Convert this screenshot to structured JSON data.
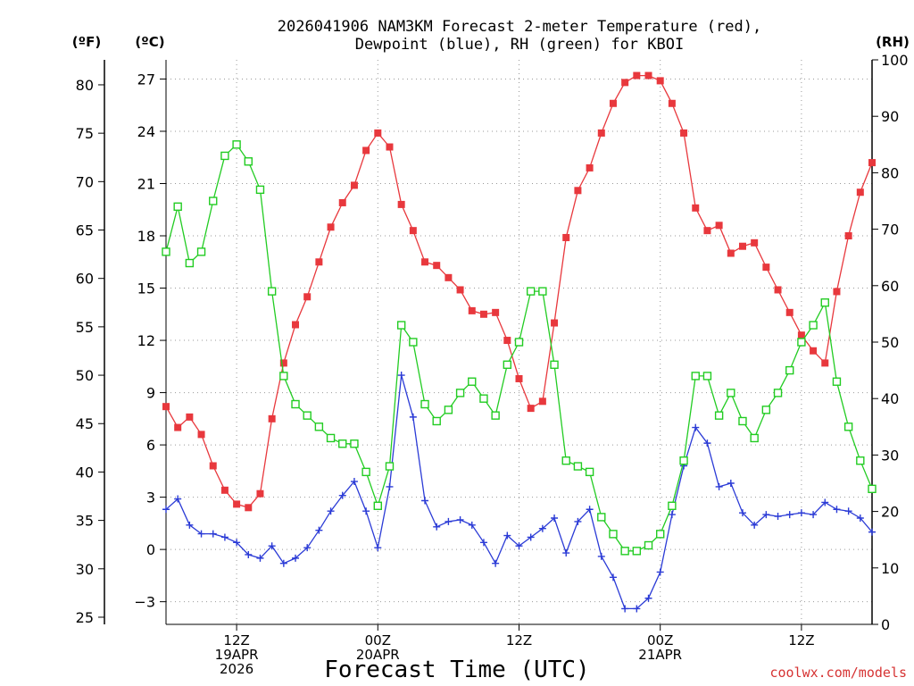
{
  "chart_data": {
    "type": "line",
    "title_line1": "2026041906 NAM3KM Forecast 2-meter Temperature (red),",
    "title_line2": "Dewpoint (blue), RH (green) for KBOI",
    "unit_f": "(ºF)",
    "unit_c": "(ºC)",
    "unit_rh": "(RH)",
    "xlabel": "Forecast Time (UTC)",
    "credit": "coolwx.com/models",
    "f_ticks": [
      "25",
      "30",
      "35",
      "40",
      "45",
      "50",
      "55",
      "60",
      "65",
      "70",
      "75",
      "80"
    ],
    "f_values": [
      25,
      30,
      35,
      40,
      45,
      50,
      55,
      60,
      65,
      70,
      75,
      80
    ],
    "c_ticks": [
      "−3",
      "0",
      "3",
      "6",
      "9",
      "12",
      "15",
      "18",
      "21",
      "24",
      "27"
    ],
    "c_values": [
      -3,
      0,
      3,
      6,
      9,
      12,
      15,
      18,
      21,
      24,
      27
    ],
    "rh_ticks": [
      "0",
      "10",
      "20",
      "30",
      "40",
      "50",
      "60",
      "70",
      "80",
      "90",
      "100"
    ],
    "rh_values": [
      0,
      10,
      20,
      30,
      40,
      50,
      60,
      70,
      80,
      90,
      100
    ],
    "ylim_c": [
      -4.3,
      28.1
    ],
    "ylim_rh": [
      0,
      100
    ],
    "xlim_hours": [
      6,
      66
    ],
    "x_ticks": [
      {
        "hour": 12,
        "lines": [
          "12Z",
          "19APR",
          "2026"
        ]
      },
      {
        "hour": 24,
        "lines": [
          "00Z",
          "20APR"
        ]
      },
      {
        "hour": 36,
        "lines": [
          "12Z"
        ]
      },
      {
        "hour": 48,
        "lines": [
          "00Z",
          "21APR"
        ]
      },
      {
        "hour": 60,
        "lines": [
          "12Z"
        ]
      }
    ],
    "hours": [
      6,
      7,
      8,
      9,
      10,
      11,
      12,
      13,
      14,
      15,
      16,
      17,
      18,
      19,
      20,
      21,
      22,
      23,
      24,
      25,
      26,
      27,
      28,
      29,
      30,
      31,
      32,
      33,
      34,
      35,
      36,
      37,
      38,
      39,
      40,
      41,
      42,
      43,
      44,
      45,
      46,
      47,
      48,
      49,
      50,
      51,
      52,
      53,
      54,
      55,
      56,
      57,
      58,
      59,
      60,
      61,
      62,
      63,
      64,
      65,
      66
    ],
    "series": [
      {
        "name": "2-meter Temperature",
        "unit": "C",
        "color": "#e8383d",
        "marker": "filled-square",
        "values": [
          8.2,
          7.0,
          7.6,
          6.6,
          4.8,
          3.4,
          2.6,
          2.4,
          3.2,
          7.5,
          10.7,
          12.9,
          14.5,
          16.5,
          18.5,
          19.9,
          20.9,
          22.9,
          23.9,
          23.1,
          19.8,
          18.3,
          16.5,
          16.3,
          15.6,
          14.9,
          13.7,
          13.5,
          13.6,
          12.0,
          9.8,
          8.1,
          8.5,
          13.0,
          17.9,
          20.6,
          21.9,
          23.9,
          25.6,
          26.8,
          27.2,
          27.2,
          26.9,
          25.6,
          23.9,
          19.6,
          18.3,
          18.6,
          17.0,
          17.4,
          17.6,
          16.2,
          14.9,
          13.6,
          12.3,
          11.4,
          10.7,
          14.8,
          18.0,
          20.5,
          22.2
        ]
      },
      {
        "name": "Dewpoint",
        "unit": "C",
        "color": "#2b3bd6",
        "marker": "plus",
        "values": [
          2.3,
          2.9,
          1.4,
          0.9,
          0.9,
          0.7,
          0.4,
          -0.3,
          -0.5,
          0.2,
          -0.8,
          -0.5,
          0.1,
          1.1,
          2.2,
          3.1,
          3.9,
          2.2,
          0.1,
          3.6,
          10.0,
          7.6,
          2.8,
          1.3,
          1.6,
          1.7,
          1.4,
          0.4,
          -0.8,
          0.8,
          0.2,
          0.7,
          1.2,
          1.8,
          -0.2,
          1.6,
          2.3,
          -0.4,
          -1.6,
          -3.4,
          -3.4,
          -2.8,
          -1.3,
          2.0,
          4.8,
          7.0,
          6.1,
          3.6,
          3.8,
          2.1,
          1.4,
          2.0,
          1.9,
          2.0,
          2.1,
          2.0,
          2.7,
          2.3,
          2.2,
          1.8,
          1.0
        ]
      },
      {
        "name": "RH",
        "unit": "%",
        "color": "#22cc22",
        "marker": "open-square",
        "values": [
          66,
          74,
          64,
          66,
          75,
          83,
          85,
          82,
          77,
          59,
          44,
          39,
          37,
          35,
          33,
          32,
          32,
          27,
          21,
          28,
          53,
          50,
          39,
          36,
          38,
          41,
          43,
          40,
          37,
          46,
          50,
          59,
          59,
          46,
          29,
          28,
          27,
          19,
          16,
          13,
          13,
          14,
          16,
          21,
          29,
          44,
          44,
          37,
          41,
          36,
          33,
          38,
          41,
          45,
          50,
          53,
          57,
          43,
          35,
          29,
          24
        ]
      }
    ]
  }
}
